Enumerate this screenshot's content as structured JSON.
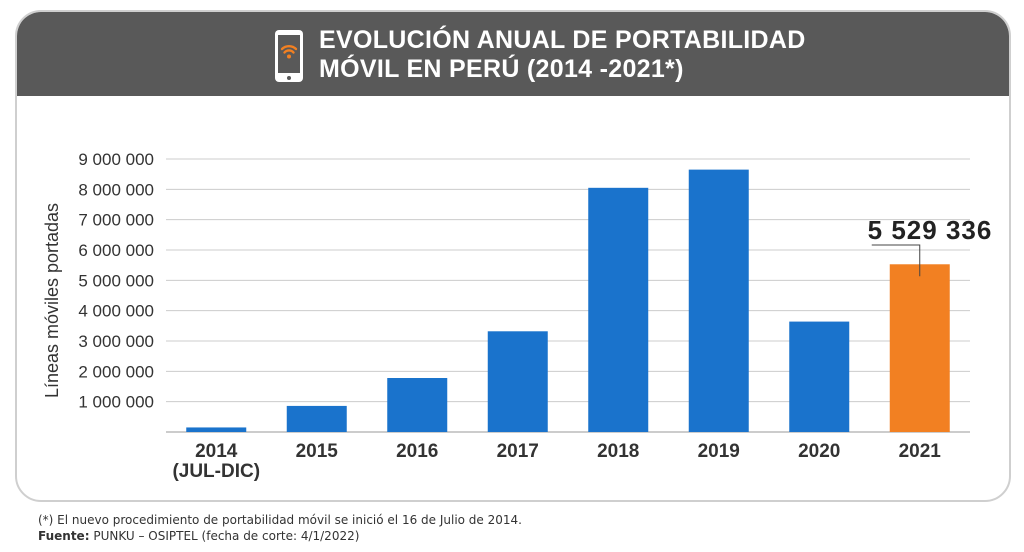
{
  "header": {
    "title_line1": "EVOLUCIÓN ANUAL DE PORTABILIDAD",
    "title_line2": "MÓVIL EN PERÚ (2014 -2021*)",
    "icon": "smartphone-wifi-icon"
  },
  "chart_data": {
    "type": "bar",
    "title": "EVOLUCIÓN ANUAL DE PORTABILIDAD MÓVIL EN PERÚ (2014 -2021*)",
    "ylabel": "Líneas móviles portadas",
    "xlabel": "",
    "categories": [
      [
        "2014",
        "(JUL-DIC)"
      ],
      [
        "2015"
      ],
      [
        "2016"
      ],
      [
        "2017"
      ],
      [
        "2018"
      ],
      [
        "2019"
      ],
      [
        "2020"
      ],
      [
        "2021"
      ]
    ],
    "values": [
      150000,
      860000,
      1780000,
      3320000,
      8050000,
      8650000,
      3640000,
      5529336
    ],
    "ylim": [
      0,
      9000000
    ],
    "yticks": [
      {
        "value": 1000000,
        "label": "1 000 000"
      },
      {
        "value": 2000000,
        "label": "2 000 000"
      },
      {
        "value": 3000000,
        "label": "3 000 000"
      },
      {
        "value": 4000000,
        "label": "4 000 000"
      },
      {
        "value": 5000000,
        "label": "5 000 000"
      },
      {
        "value": 6000000,
        "label": "6 000 000"
      },
      {
        "value": 7000000,
        "label": "7 000 000"
      },
      {
        "value": 8000000,
        "label": "8 000 000"
      },
      {
        "value": 9000000,
        "label": "9 000 000"
      }
    ],
    "highlight_index": 7,
    "highlight_label": "5 529 336",
    "grid": true,
    "colors": {
      "bar": "#1a73cc",
      "highlight": "#f28022",
      "grid": "#cccccc",
      "text": "#333333"
    }
  },
  "footer": {
    "note": "(*) El nuevo procedimiento de portabilidad móvil se inició el 16 de Julio de 2014.",
    "source_label": "Fuente:",
    "source_text": "PUNKU – OSIPTEL (fecha de corte: 4/1/2022)"
  }
}
